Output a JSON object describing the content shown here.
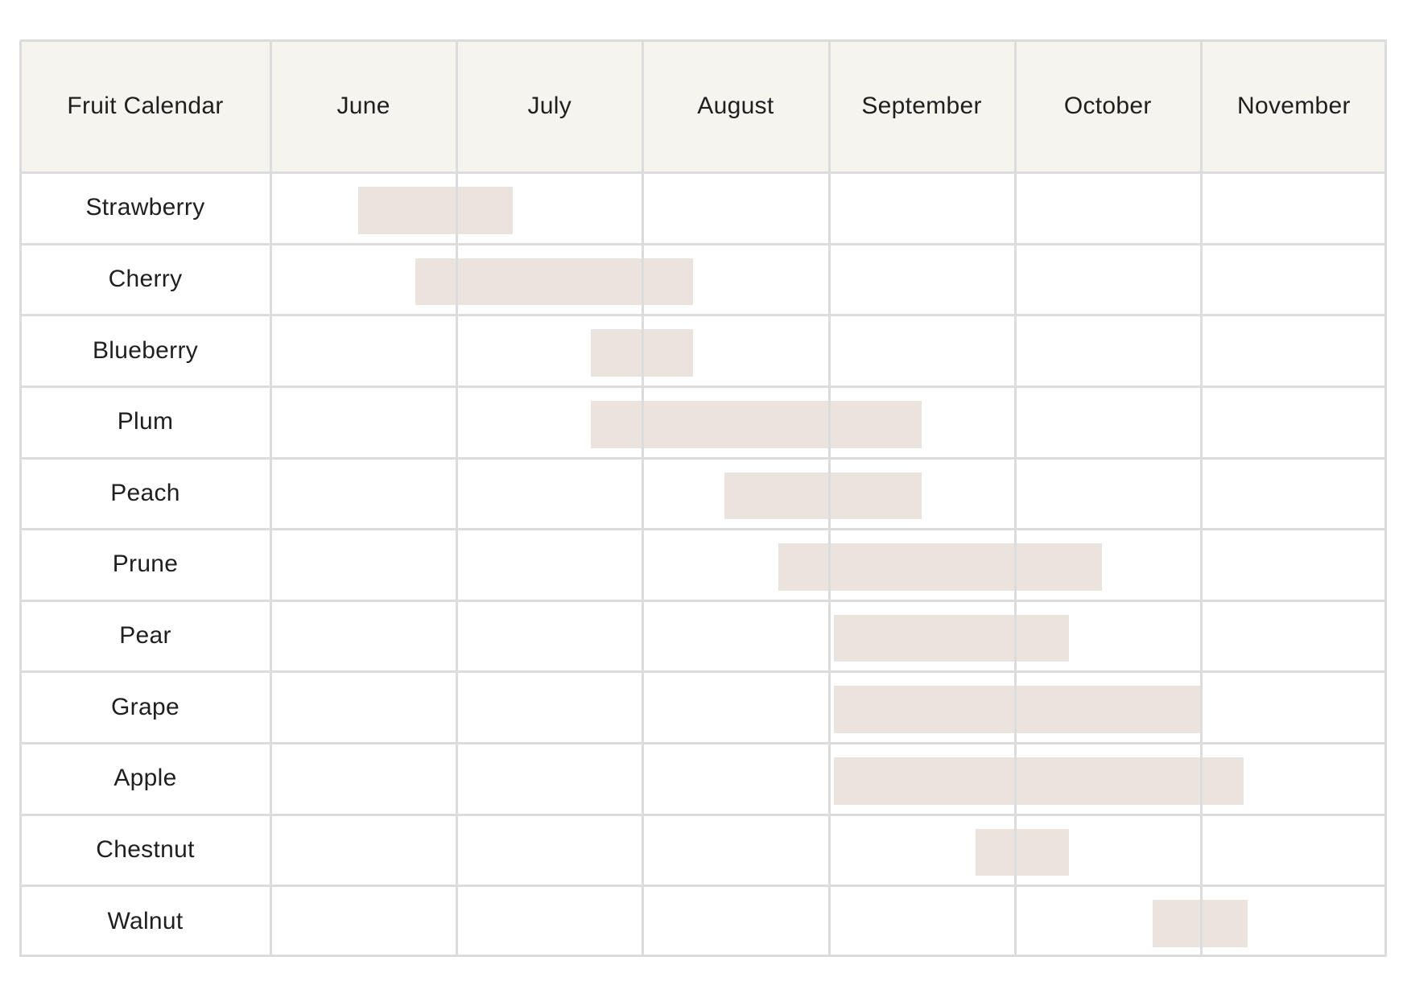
{
  "chart_data": {
    "type": "gantt",
    "title": "Fruit Calendar",
    "categories": [
      "June",
      "July",
      "August",
      "September",
      "October",
      "November"
    ],
    "colors": {
      "header_bg": "#f6f4ef",
      "bar": "#ebe3dd",
      "grid": "#dcdcdc"
    },
    "grid": true,
    "series": [
      {
        "label": "Strawberry",
        "start": 0.47,
        "end": 1.3
      },
      {
        "label": "Cherry",
        "start": 0.78,
        "end": 2.27
      },
      {
        "label": "Blueberry",
        "start": 1.72,
        "end": 2.27
      },
      {
        "label": "Plum",
        "start": 1.72,
        "end": 3.5
      },
      {
        "label": "Peach",
        "start": 2.44,
        "end": 3.5
      },
      {
        "label": "Prune",
        "start": 2.73,
        "end": 4.47
      },
      {
        "label": "Pear",
        "start": 3.03,
        "end": 4.29
      },
      {
        "label": "Grape",
        "start": 3.03,
        "end": 5.0
      },
      {
        "label": "Apple",
        "start": 3.03,
        "end": 5.23
      },
      {
        "label": "Chestnut",
        "start": 3.79,
        "end": 4.29
      },
      {
        "label": "Walnut",
        "start": 4.74,
        "end": 5.25
      }
    ],
    "units_note": "start/end in months, 0 = start of June"
  }
}
